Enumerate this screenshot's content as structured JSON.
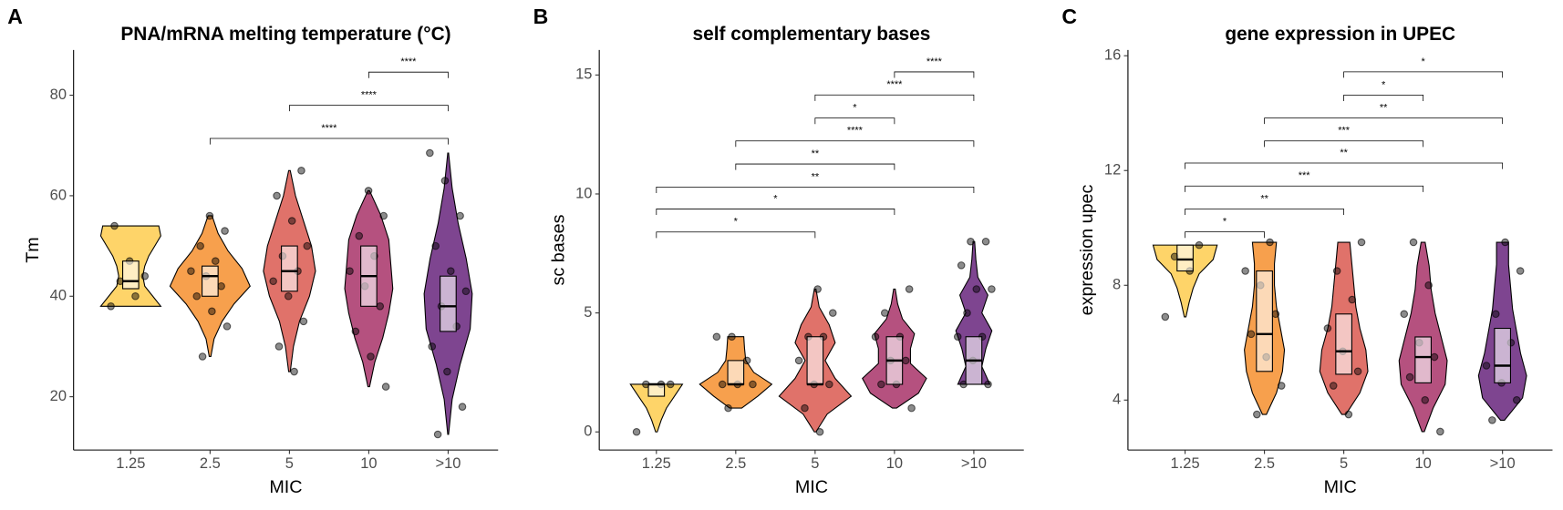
{
  "chart_data": [
    {
      "type": "violin",
      "panel": "A",
      "title": "PNA/mRNA melting temperature (°C)",
      "x_label": "MIC",
      "y_label": "Tm",
      "categories": [
        "1.25",
        "2.5",
        "5",
        "10",
        ">10"
      ],
      "colors": [
        "#fed469",
        "#f7a04d",
        "#e0726a",
        "#b5517f",
        "#7e4590"
      ],
      "ylim": [
        9.4,
        89
      ],
      "yticks": [
        20,
        40,
        60,
        80
      ],
      "groups": [
        {
          "range": [
            38,
            54
          ],
          "density": [
            0.75,
            0.55,
            0.35,
            0.3,
            0.35,
            0.45,
            0.6,
            0.75,
            0.7
          ],
          "box": {
            "q1": 41.5,
            "median": 43,
            "q3": 47
          },
          "points": [
            38,
            40,
            43,
            44,
            47,
            54
          ]
        },
        {
          "range": [
            28,
            56
          ],
          "density": [
            0.02,
            0.1,
            0.3,
            0.6,
            1,
            0.8,
            0.45,
            0.2,
            0.05
          ],
          "box": {
            "q1": 40,
            "median": 44,
            "q3": 46
          },
          "points": [
            28,
            34,
            37,
            40,
            42,
            44,
            45,
            47,
            50,
            53,
            56
          ]
        },
        {
          "range": [
            25,
            65
          ],
          "density": [
            0.02,
            0.1,
            0.25,
            0.5,
            0.65,
            0.55,
            0.35,
            0.15,
            0.02
          ],
          "box": {
            "q1": 41,
            "median": 45,
            "q3": 50
          },
          "points": [
            25,
            30,
            35,
            40,
            43,
            45,
            48,
            50,
            55,
            60,
            65
          ]
        },
        {
          "range": [
            22,
            61
          ],
          "density": [
            0.02,
            0.15,
            0.35,
            0.5,
            0.6,
            0.55,
            0.5,
            0.3,
            0.02
          ],
          "box": {
            "q1": 38,
            "median": 44,
            "q3": 50
          },
          "points": [
            22,
            28,
            33,
            38,
            42,
            45,
            48,
            52,
            56,
            61
          ]
        },
        {
          "range": [
            12.5,
            68.5
          ],
          "density": [
            0.01,
            0.1,
            0.3,
            0.55,
            0.6,
            0.45,
            0.25,
            0.1,
            0.01
          ],
          "box": {
            "q1": 33,
            "median": 38,
            "q3": 44
          },
          "points": [
            12.5,
            18,
            25,
            30,
            34,
            38,
            41,
            45,
            50,
            56,
            63,
            68.5
          ]
        }
      ],
      "comparisons": [
        {
          "from": "10",
          "to": ">10",
          "label": "****",
          "y": 84.6
        },
        {
          "from": "5",
          "to": ">10",
          "label": "****",
          "y": 78
        },
        {
          "from": "2.5",
          "to": ">10",
          "label": "****",
          "y": 71.4
        }
      ]
    },
    {
      "type": "violin",
      "panel": "B",
      "title": "self complementary bases",
      "x_label": "MIC",
      "y_label": "sc bases",
      "categories": [
        "1.25",
        "2.5",
        "5",
        "10",
        ">10"
      ],
      "colors": [
        "#fed469",
        "#f7a04d",
        "#e0726a",
        "#b5517f",
        "#7e4590"
      ],
      "ylim": [
        -0.76,
        16.05
      ],
      "yticks": [
        0,
        5,
        10,
        15
      ],
      "groups": [
        {
          "range": [
            0,
            2
          ],
          "density": [
            0.02,
            0.12,
            0.25,
            0.45,
            0.65
          ],
          "box": {
            "q1": 1.5,
            "median": 2,
            "q3": 2
          },
          "points": [
            0,
            2,
            2,
            2
          ]
        },
        {
          "range": [
            1,
            4
          ],
          "density": [
            0.15,
            0.55,
            0.9,
            0.45,
            0.25,
            0.22,
            0.2
          ],
          "box": {
            "q1": 2,
            "median": 2,
            "q3": 3
          },
          "points": [
            1,
            2,
            2,
            2,
            3,
            4,
            4
          ]
        },
        {
          "range": [
            0,
            6
          ],
          "density": [
            0.02,
            0.3,
            0.9,
            0.5,
            0.25,
            0.5,
            0.35,
            0.1,
            0.02
          ],
          "box": {
            "q1": 2,
            "median": 2,
            "q3": 4
          },
          "points": [
            0,
            1,
            2,
            2,
            3,
            4,
            4,
            5,
            6
          ]
        },
        {
          "range": [
            1,
            6
          ],
          "density": [
            0.05,
            0.6,
            0.8,
            0.4,
            0.4,
            0.5,
            0.2,
            0.08,
            0.02
          ],
          "box": {
            "q1": 2,
            "median": 3,
            "q3": 4
          },
          "points": [
            1,
            2,
            2,
            3,
            3,
            4,
            4,
            5,
            6
          ]
        },
        {
          "range": [
            2,
            8
          ],
          "density": [
            0.4,
            0.2,
            0.3,
            0.45,
            0.2,
            0.35,
            0.1,
            0.05,
            0.02
          ],
          "box": {
            "q1": 2,
            "median": 3,
            "q3": 4
          },
          "points": [
            2,
            2,
            3,
            4,
            4,
            5,
            6,
            6,
            7,
            8,
            8
          ]
        }
      ],
      "comparisons": [
        {
          "from": "10",
          "to": ">10",
          "label": "****",
          "y": 15.13
        },
        {
          "from": "5",
          "to": ">10",
          "label": "****",
          "y": 14.16
        },
        {
          "from": "5",
          "to": "10",
          "label": "*",
          "y": 13.19
        },
        {
          "from": "2.5",
          "to": ">10",
          "label": "****",
          "y": 12.23
        },
        {
          "from": "2.5",
          "to": "10",
          "label": "**",
          "y": 11.26
        },
        {
          "from": "1.25",
          "to": ">10",
          "label": "**",
          "y": 10.29
        },
        {
          "from": "1.25",
          "to": "10",
          "label": "*",
          "y": 9.37
        },
        {
          "from": "1.25",
          "to": "5",
          "label": "*",
          "y": 8.4
        }
      ]
    },
    {
      "type": "violin",
      "panel": "C",
      "title": "gene expression in UPEC",
      "x_label": "MIC",
      "y_label": "expression upec",
      "categories": [
        "1.25",
        "2.5",
        "5",
        "10",
        ">10"
      ],
      "colors": [
        "#fed469",
        "#f7a04d",
        "#e0726a",
        "#b5517f",
        "#7e4590"
      ],
      "ylim": [
        2.26,
        16.2
      ],
      "yticks": [
        4,
        8,
        12,
        16
      ],
      "groups": [
        {
          "range": [
            6.9,
            9.4
          ],
          "density": [
            0.02,
            0.1,
            0.2,
            0.35,
            0.7,
            0.8
          ],
          "box": {
            "q1": 8.5,
            "median": 8.9,
            "q3": 9.4
          },
          "points": [
            6.9,
            8.5,
            9,
            9.4
          ]
        },
        {
          "range": [
            3.5,
            9.5
          ],
          "density": [
            0.05,
            0.3,
            0.45,
            0.5,
            0.4,
            0.3,
            0.25,
            0.25,
            0.3
          ],
          "box": {
            "q1": 5,
            "median": 6.3,
            "q3": 8.5
          },
          "points": [
            3.5,
            4.5,
            5.5,
            6.3,
            7,
            8,
            8.5,
            9.5
          ]
        },
        {
          "range": [
            3.5,
            9.5
          ],
          "density": [
            0.05,
            0.4,
            0.6,
            0.55,
            0.4,
            0.3,
            0.25,
            0.2,
            0.15
          ],
          "box": {
            "q1": 4.9,
            "median": 5.7,
            "q3": 7
          },
          "points": [
            3.5,
            4.5,
            5,
            5.7,
            6.5,
            7.5,
            8.5,
            9.5
          ]
        },
        {
          "range": [
            2.9,
            9.5
          ],
          "density": [
            0.03,
            0.25,
            0.55,
            0.6,
            0.45,
            0.3,
            0.2,
            0.15,
            0.05
          ],
          "box": {
            "q1": 4.6,
            "median": 5.5,
            "q3": 6.2
          },
          "points": [
            2.9,
            4,
            4.8,
            5.5,
            6,
            7,
            8,
            9.5
          ]
        },
        {
          "range": [
            3.3,
            9.5
          ],
          "density": [
            0.05,
            0.5,
            0.6,
            0.45,
            0.35,
            0.25,
            0.2,
            0.15,
            0.15
          ],
          "box": {
            "q1": 4.6,
            "median": 5.2,
            "q3": 6.5
          },
          "points": [
            3.3,
            4,
            4.6,
            5.2,
            6,
            7,
            8.5,
            9.5
          ]
        }
      ],
      "comparisons": [
        {
          "from": "5",
          "to": ">10",
          "label": "*",
          "y": 15.44
        },
        {
          "from": "5",
          "to": "10",
          "label": "*",
          "y": 14.63
        },
        {
          "from": "2.5",
          "to": ">10",
          "label": "**",
          "y": 13.83
        },
        {
          "from": "2.5",
          "to": "10",
          "label": "***",
          "y": 13.03
        },
        {
          "from": "1.25",
          "to": ">10",
          "label": "**",
          "y": 12.26
        },
        {
          "from": "1.25",
          "to": "10",
          "label": "***",
          "y": 11.46
        },
        {
          "from": "1.25",
          "to": "5",
          "label": "**",
          "y": 10.66
        },
        {
          "from": "1.25",
          "to": "2.5",
          "label": "*",
          "y": 9.86
        }
      ]
    }
  ]
}
